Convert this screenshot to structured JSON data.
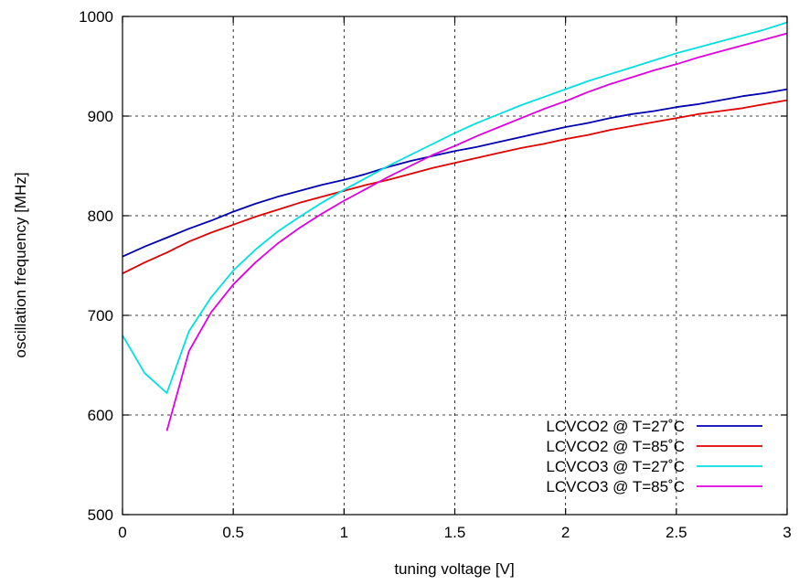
{
  "chart_data": {
    "type": "line",
    "title": "",
    "xlabel": "tuning voltage [V]",
    "ylabel": "oscillation frequency [MHz]",
    "xlim": [
      0,
      3
    ],
    "ylim": [
      500,
      1000
    ],
    "x_ticks": [
      0,
      0.5,
      1,
      1.5,
      2,
      2.5,
      3
    ],
    "y_ticks": [
      500,
      600,
      700,
      800,
      900,
      1000
    ],
    "grid": true,
    "legend_position": "bottom-right",
    "series": [
      {
        "name": "LCVCO2 @ T=27˚C",
        "color": "#0000b0",
        "x": [
          0,
          0.1,
          0.2,
          0.3,
          0.4,
          0.5,
          0.6,
          0.7,
          0.8,
          0.9,
          1.0,
          1.1,
          1.2,
          1.3,
          1.4,
          1.5,
          1.6,
          1.7,
          1.8,
          1.9,
          2.0,
          2.1,
          2.2,
          2.3,
          2.4,
          2.5,
          2.6,
          2.7,
          2.8,
          2.9,
          3.0
        ],
        "y": [
          759,
          769,
          778,
          787,
          795,
          804,
          812,
          819,
          825,
          831,
          836,
          842,
          849,
          855,
          860,
          865,
          869,
          874,
          879,
          884,
          889,
          893,
          898,
          902,
          905,
          909,
          912,
          916,
          920,
          923,
          927
        ]
      },
      {
        "name": "LCVCO2 @ T=85˚C",
        "color": "#e00000",
        "x": [
          0,
          0.1,
          0.2,
          0.3,
          0.4,
          0.5,
          0.6,
          0.7,
          0.8,
          0.9,
          1.0,
          1.1,
          1.2,
          1.3,
          1.4,
          1.5,
          1.6,
          1.7,
          1.8,
          1.9,
          2.0,
          2.1,
          2.2,
          2.3,
          2.4,
          2.5,
          2.6,
          2.7,
          2.8,
          2.9,
          3.0
        ],
        "y": [
          742,
          753,
          763,
          774,
          783,
          791,
          799,
          806,
          813,
          819,
          825,
          831,
          836,
          842,
          848,
          853,
          858,
          863,
          868,
          872,
          877,
          881,
          886,
          890,
          894,
          898,
          902,
          905,
          908,
          912,
          916
        ]
      },
      {
        "name": "LCVCO3 @ T=27˚C",
        "color": "#00e0e0",
        "x": [
          0,
          0.1,
          0.2,
          0.3,
          0.4,
          0.5,
          0.6,
          0.7,
          0.8,
          0.9,
          1.0,
          1.1,
          1.2,
          1.3,
          1.4,
          1.5,
          1.6,
          1.7,
          1.8,
          1.9,
          2.0,
          2.1,
          2.2,
          2.3,
          2.4,
          2.5,
          2.6,
          2.7,
          2.8,
          2.9,
          3.0
        ],
        "y": [
          680,
          642,
          622,
          684,
          718,
          745,
          766,
          784,
          799,
          813,
          826,
          838,
          850,
          861,
          872,
          883,
          893,
          902,
          911,
          919,
          927,
          935,
          942,
          949,
          956,
          963,
          969,
          975,
          981,
          987,
          994
        ]
      },
      {
        "name": "LCVCO3 @ T=85˚C",
        "color": "#e000e0",
        "x": [
          0.2,
          0.3,
          0.4,
          0.5,
          0.6,
          0.7,
          0.8,
          0.9,
          1.0,
          1.1,
          1.2,
          1.3,
          1.4,
          1.5,
          1.6,
          1.7,
          1.8,
          1.9,
          2.0,
          2.1,
          2.2,
          2.3,
          2.4,
          2.5,
          2.6,
          2.7,
          2.8,
          2.9,
          3.0
        ],
        "y": [
          584,
          664,
          703,
          731,
          753,
          772,
          788,
          802,
          815,
          827,
          839,
          850,
          861,
          870,
          880,
          889,
          898,
          907,
          915,
          924,
          932,
          939,
          946,
          952,
          959,
          965,
          971,
          977,
          983
        ]
      }
    ]
  }
}
